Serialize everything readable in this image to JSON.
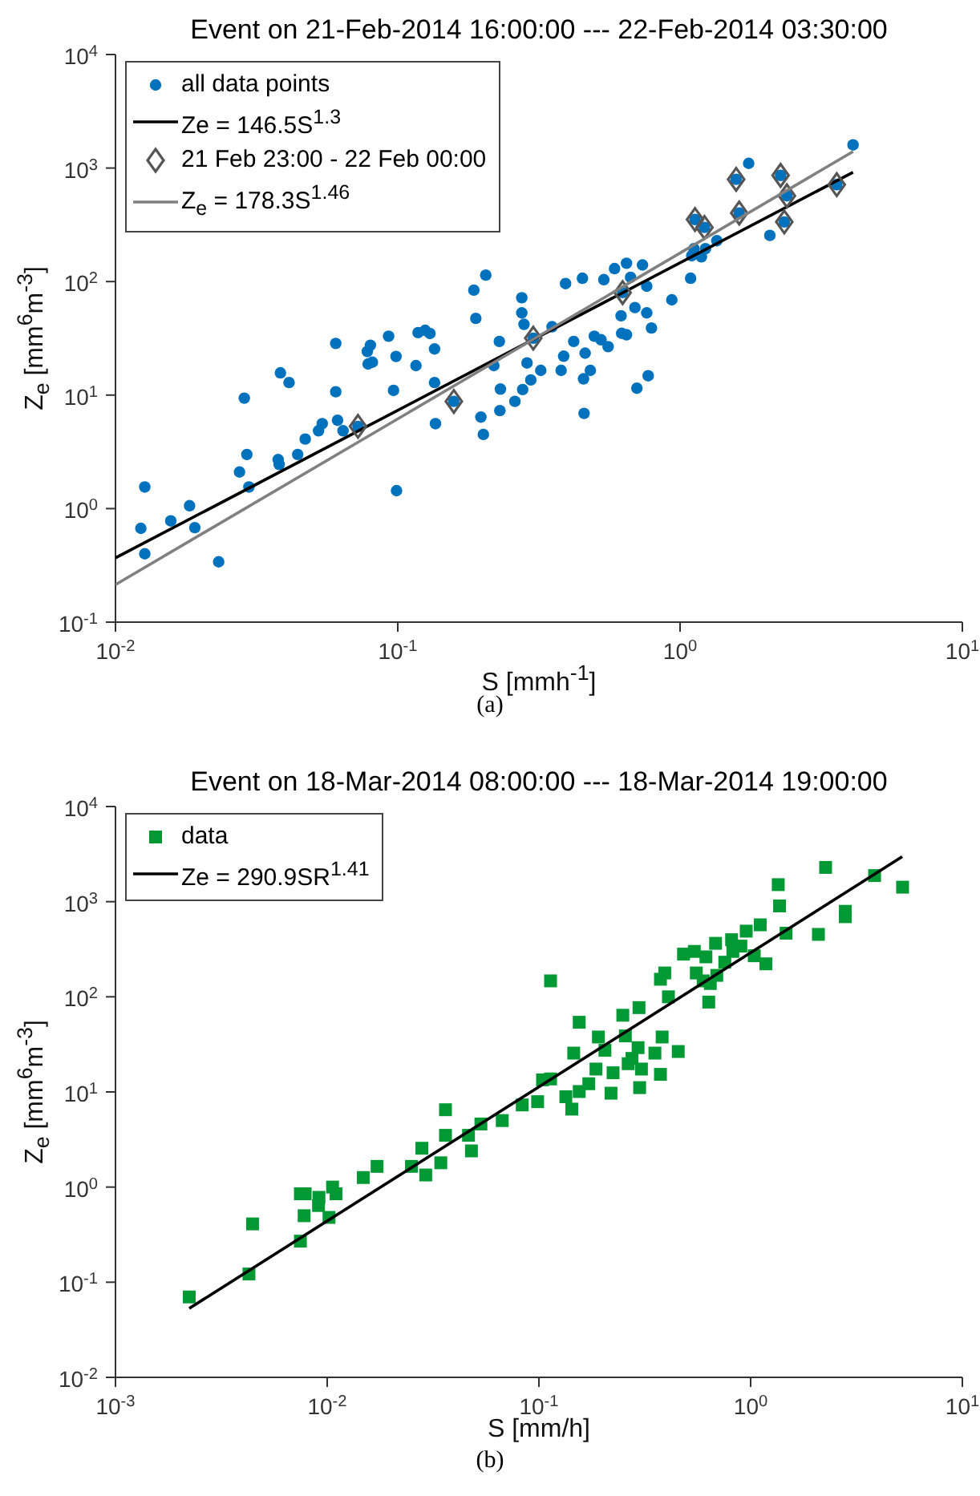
{
  "chart_data": [
    {
      "type": "scatter",
      "title": "Event on 21-Feb-2014 16:00:00 --- 22-Feb-2014 03:30:00",
      "xlabel": "S [mmh$^{-1}$]",
      "ylabel": "Z$_{e}$ [mm$^{6}$m$^{-3}$]",
      "log": "xy",
      "legend": "top left",
      "xlim": [
        0.01,
        10
      ],
      "xticks": [
        {
          "value": 0.01,
          "label": "10$^{-2}$"
        },
        {
          "value": 0.1,
          "label": "10$^{-1}$"
        },
        {
          "value": 1,
          "label": "10$^{0}$"
        },
        {
          "value": 10,
          "label": "10$^{1}$"
        }
      ],
      "ylim": [
        0.1,
        10000
      ],
      "yticks": [
        {
          "value": 0.1,
          "label": "10$^{-1}$"
        },
        {
          "value": 1,
          "label": "10$^{0}$"
        },
        {
          "value": 10,
          "label": "10$^{1}$"
        },
        {
          "value": 100,
          "label": "10$^{2}$"
        },
        {
          "value": 1000,
          "label": "10$^{3}$"
        },
        {
          "value": 10000,
          "label": "10$^{4}$"
        }
      ],
      "annotations": [
        "(a)"
      ],
      "series": [
        {
          "name": "all data points",
          "type": "scatter",
          "marker": "circle",
          "color": "#0072bd",
          "x": [
            0.0123,
            0.0127,
            0.0127,
            0.0157,
            0.0183,
            0.0191,
            0.0232,
            0.0275,
            0.0286,
            0.0292,
            0.0297,
            0.0377,
            0.038,
            0.0384,
            0.0412,
            0.0442,
            0.047,
            0.0524,
            0.054,
            0.0603,
            0.0603,
            0.0612,
            0.064,
            0.0723,
            0.078,
            0.08,
            0.0785,
            0.0813,
            0.0928,
            0.0966,
            0.0986,
            0.099,
            0.116,
            0.118,
            0.125,
            0.13,
            0.135,
            0.135,
            0.136,
            0.158,
            0.186,
            0.189,
            0.205,
            0.197,
            0.201,
            0.219,
            0.229,
            0.231,
            0.23,
            0.26,
            0.275,
            0.275,
            0.28,
            0.287,
            0.277,
            0.296,
            0.302,
            0.321,
            0.352,
            0.393,
            0.379,
            0.387,
            0.42,
            0.461,
            0.455,
            0.457,
            0.481,
            0.451,
            0.497,
            0.525,
            0.537,
            0.556,
            0.586,
            0.626,
            0.646,
            0.618,
            0.621,
            0.646,
            0.668,
            0.692,
            0.736,
            0.762,
            0.762,
            0.792,
            0.703,
            0.771,
            0.935,
            1.09,
            1.1,
            1.12,
            1.19,
            1.23,
            1.13,
            1.22,
            1.35,
            1.58,
            1.62,
            1.75,
            2.08,
            2.27,
            2.39,
            2.34,
            3.59,
            4.1
          ],
          "values": [
            0.67,
            1.55,
            0.4,
            0.78,
            1.06,
            0.68,
            0.34,
            2.1,
            9.4,
            3,
            1.55,
            2.7,
            2.45,
            15.7,
            12.9,
            3,
            4.1,
            4.85,
            5.6,
            28.5,
            10.7,
            6,
            4.85,
            5.3,
            24.2,
            27.5,
            18.8,
            19.5,
            33,
            11,
            21.9,
            1.44,
            18.2,
            35.5,
            37.2,
            34.9,
            25.5,
            12.9,
            5.6,
            8.8,
            84,
            47.4,
            114,
            6.4,
            4.5,
            18.2,
            29.7,
            11.3,
            7.3,
            8.8,
            72,
            53,
            42,
            19.2,
            11.2,
            13.6,
            31.7,
            16.5,
            40,
            96,
            16.5,
            22,
            29.7,
            23.4,
            13.9,
            6.9,
            16.5,
            107,
            33,
            30.7,
            104,
            26.7,
            130,
            80,
            145,
            50,
            35,
            34,
            109,
            59,
            140,
            91,
            53,
            39,
            11.5,
            14.8,
            69,
            107,
            169,
            195,
            165,
            195,
            352,
            300,
            229,
            796,
            402,
            1100,
            255,
            861,
            569,
            335,
            714,
            1600
          ]
        },
        {
          "name": "Ze = 146.5S$^{1.3}$",
          "type": "line",
          "marker": "none",
          "color": "#000000",
          "x": [
            0.01,
            4.1
          ],
          "values": [
            0.368,
            917
          ]
        },
        {
          "name": "21 Feb 23:00 - 22 Feb 00:00",
          "type": "scatter",
          "marker": "diamond",
          "color": "#555555",
          "x": [
            0.0723,
            0.158,
            0.302,
            0.626,
            1.13,
            1.22,
            1.58,
            1.62,
            2.27,
            2.39,
            2.34,
            3.59
          ],
          "values": [
            5.3,
            8.8,
            31.7,
            80,
            352,
            300,
            796,
            402,
            861,
            569,
            335,
            714
          ]
        },
        {
          "name": "Z$_{e}$ = 178.3S$^{1.46}$",
          "type": "line",
          "marker": "none",
          "color": "#808080",
          "x": [
            0.01,
            4.1
          ],
          "values": [
            0.214,
            1399
          ]
        }
      ]
    },
    {
      "type": "scatter",
      "title": "Event on 18-Mar-2014 08:00:00 --- 18-Mar-2014 19:00:00",
      "xlabel": "S [mm/h]",
      "ylabel": "Z$_{e}$ [mm$^{6}$m$^{-3}$]",
      "log": "xy",
      "legend": "top left",
      "xlim": [
        0.001,
        10
      ],
      "xticks": [
        {
          "value": 0.001,
          "label": "10$^{-3}$"
        },
        {
          "value": 0.01,
          "label": "10$^{-2}$"
        },
        {
          "value": 0.1,
          "label": "10$^{-1}$"
        },
        {
          "value": 1,
          "label": "10$^{0}$"
        },
        {
          "value": 10,
          "label": "10$^{1}$"
        }
      ],
      "ylim": [
        0.01,
        10000
      ],
      "yticks": [
        {
          "value": 0.01,
          "label": "10$^{-2}$"
        },
        {
          "value": 0.1,
          "label": "10$^{-1}$"
        },
        {
          "value": 1,
          "label": "10$^{0}$"
        },
        {
          "value": 10,
          "label": "10$^{1}$"
        },
        {
          "value": 100,
          "label": "10$^{2}$"
        },
        {
          "value": 1000,
          "label": "10$^{3}$"
        },
        {
          "value": 10000,
          "label": "10$^{4}$"
        }
      ],
      "annotations": [
        "(b)"
      ],
      "series": [
        {
          "name": "data",
          "type": "scatter",
          "marker": "square",
          "color": "#009933",
          "x": [
            0.00223,
            0.00427,
            0.00444,
            0.00747,
            0.00787,
            0.00747,
            0.00778,
            0.00914,
            0.0091,
            0.0106,
            0.011,
            0.0102,
            0.0148,
            0.0172,
            0.025,
            0.0292,
            0.028,
            0.0344,
            0.0362,
            0.0362,
            0.0465,
            0.048,
            0.0532,
            0.0671,
            0.0834,
            0.0986,
            0.104,
            0.1135,
            0.1135,
            0.134,
            0.143,
            0.146,
            0.155,
            0.155,
            0.172,
            0.186,
            0.191,
            0.205,
            0.219,
            0.224,
            0.249,
            0.256,
            0.264,
            0.275,
            0.297,
            0.305,
            0.299,
            0.294,
            0.353,
            0.375,
            0.382,
            0.375,
            0.409,
            0.393,
            0.455,
            0.482,
            0.542,
            0.554,
            0.597,
            0.615,
            0.634,
            0.645,
            0.683,
            0.692,
            0.755,
            0.813,
            0.824,
            0.899,
            0.953,
            1.04,
            1.11,
            1.18,
            1.35,
            1.37,
            1.47,
            2.09,
            2.26,
            2.8,
            2.8,
            3.85,
            5.22
          ],
          "values": [
            0.07,
            0.122,
            0.41,
            0.85,
            0.85,
            0.27,
            0.5,
            0.78,
            0.64,
            1,
            0.85,
            0.48,
            1.26,
            1.65,
            1.65,
            1.34,
            2.56,
            1.8,
            6.5,
            3.5,
            3.5,
            2.4,
            4.6,
            5,
            7.3,
            7.9,
            13.4,
            147,
            13.7,
            8.9,
            6.6,
            25.6,
            54,
            10.1,
            12.2,
            17.4,
            37.8,
            27.4,
            9.7,
            15.9,
            64,
            38.8,
            19.8,
            22.5,
            77,
            17.4,
            11.1,
            29.2,
            25.6,
            15.3,
            37.8,
            153,
            100,
            178,
            26.6,
            281,
            300,
            178,
            147,
            263,
            88,
            138,
            365,
            168,
            231,
            398,
            300,
            341,
            490,
            270,
            571,
            222,
            1510,
            902,
            466,
            453,
            2290,
            792,
            695,
            1880,
            1420
          ]
        },
        {
          "name": "Ze = 290.9SR$^{1.41}$",
          "type": "line",
          "marker": "none",
          "color": "#000000",
          "x": [
            0.00223,
            5.2
          ],
          "values": [
            0.0531,
            2970
          ]
        }
      ]
    }
  ]
}
